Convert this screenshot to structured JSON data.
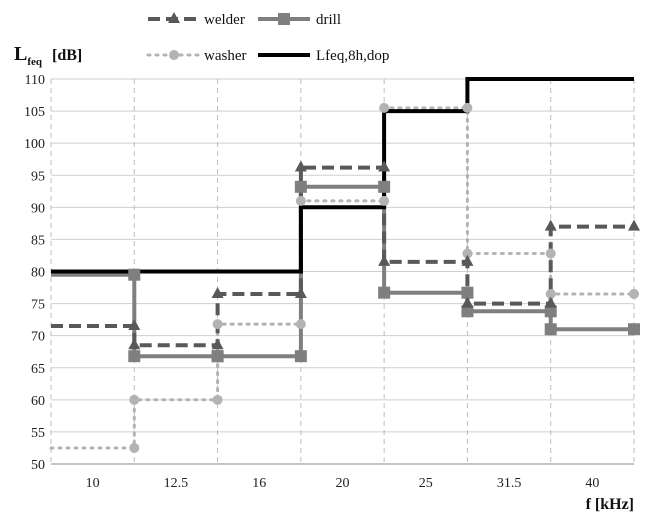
{
  "chart_data": {
    "type": "line",
    "step": "post",
    "categories": [
      "10",
      "12.5",
      "16",
      "20",
      "25",
      "31.5",
      "40"
    ],
    "x_boundaries": [
      0,
      1,
      2,
      3,
      4,
      5,
      6,
      7
    ],
    "ylabel_main": "L",
    "ylabel_sub": "feq",
    "ylabel_unit": "[dB]",
    "xlabel": "f [kHz]",
    "ylim": [
      50,
      110
    ],
    "yticks": [
      50,
      55,
      60,
      65,
      70,
      75,
      80,
      85,
      90,
      95,
      100,
      105,
      110
    ],
    "grid": true,
    "legend": "top",
    "series": [
      {
        "name": "welder",
        "style": "dashed",
        "marker": "triangle",
        "color": "#595959",
        "x": [
          0,
          1,
          1,
          2,
          2,
          3,
          3,
          4,
          4,
          5,
          5,
          6,
          6,
          7
        ],
        "y": [
          71.5,
          71.5,
          68.5,
          68.5,
          76.5,
          76.5,
          96.2,
          96.2,
          81.5,
          81.5,
          75.0,
          75.0,
          87.0,
          87.0
        ]
      },
      {
        "name": "drill",
        "style": "solid",
        "marker": "square",
        "color": "#7f7f7f",
        "x": [
          0,
          1,
          1,
          2,
          2,
          3,
          3,
          4,
          4,
          5,
          5,
          6,
          6,
          7
        ],
        "y": [
          79.5,
          79.5,
          66.8,
          66.8,
          66.8,
          66.8,
          93.2,
          93.2,
          76.7,
          76.7,
          73.8,
          73.8,
          71.0,
          71.0
        ]
      },
      {
        "name": "washer",
        "style": "dotted",
        "marker": "circle",
        "color": "#b3b3b3",
        "x": [
          0,
          1,
          1,
          2,
          2,
          3,
          3,
          4,
          4,
          5,
          5,
          6,
          6,
          7
        ],
        "y": [
          52.5,
          52.5,
          60.0,
          60.0,
          71.8,
          71.8,
          91.0,
          91.0,
          105.5,
          105.5,
          82.8,
          82.8,
          76.5,
          76.5
        ]
      },
      {
        "name": "Lfeq,8h,dop",
        "style": "solid-thick",
        "marker": "none",
        "color": "#000000",
        "x": [
          0,
          3,
          3,
          4,
          4,
          5,
          5,
          7
        ],
        "y": [
          80,
          80,
          90,
          90,
          105,
          105,
          110,
          110
        ]
      }
    ]
  }
}
